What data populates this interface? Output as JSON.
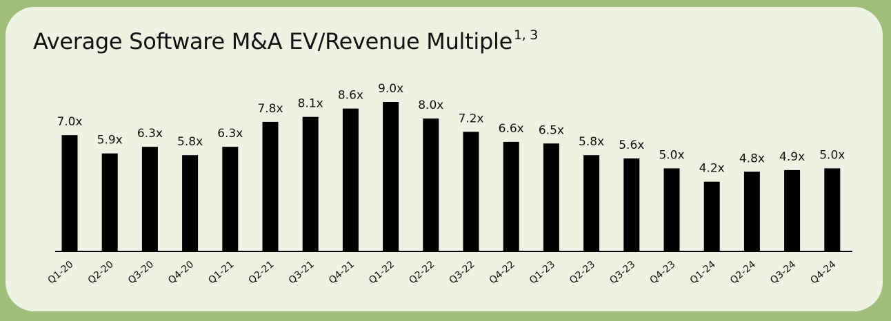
{
  "chart_data": {
    "type": "bar",
    "title": "Average Software M&A EV/Revenue Multiple",
    "title_superscript": "1, 3",
    "categories": [
      "Q1-20",
      "Q2-20",
      "Q3-20",
      "Q4-20",
      "Q1-21",
      "Q2-21",
      "Q3-21",
      "Q4-21",
      "Q1-22",
      "Q2-22",
      "Q3-22",
      "Q4-22",
      "Q1-23",
      "Q2-23",
      "Q3-23",
      "Q4-23",
      "Q1-24",
      "Q2-24",
      "Q3-24",
      "Q4-24"
    ],
    "values": [
      7.0,
      5.9,
      6.3,
      5.8,
      6.3,
      7.8,
      8.1,
      8.6,
      9.0,
      8.0,
      7.2,
      6.6,
      6.5,
      5.8,
      5.6,
      5.0,
      4.2,
      4.8,
      4.9,
      5.0
    ],
    "value_labels": [
      "7.0x",
      "5.9x",
      "6.3x",
      "5.8x",
      "6.3x",
      "7.8x",
      "8.1x",
      "8.6x",
      "9.0x",
      "8.0x",
      "7.2x",
      "6.6x",
      "6.5x",
      "5.8x",
      "5.6x",
      "5.0x",
      "4.2x",
      "4.8x",
      "4.9x",
      "5.0x"
    ],
    "ylim": [
      0,
      9.0
    ],
    "grid": false,
    "legend": "none",
    "colors": {
      "bar": "#000000",
      "card_background": "#eef2e2",
      "page_background": "#9fbe79"
    }
  }
}
